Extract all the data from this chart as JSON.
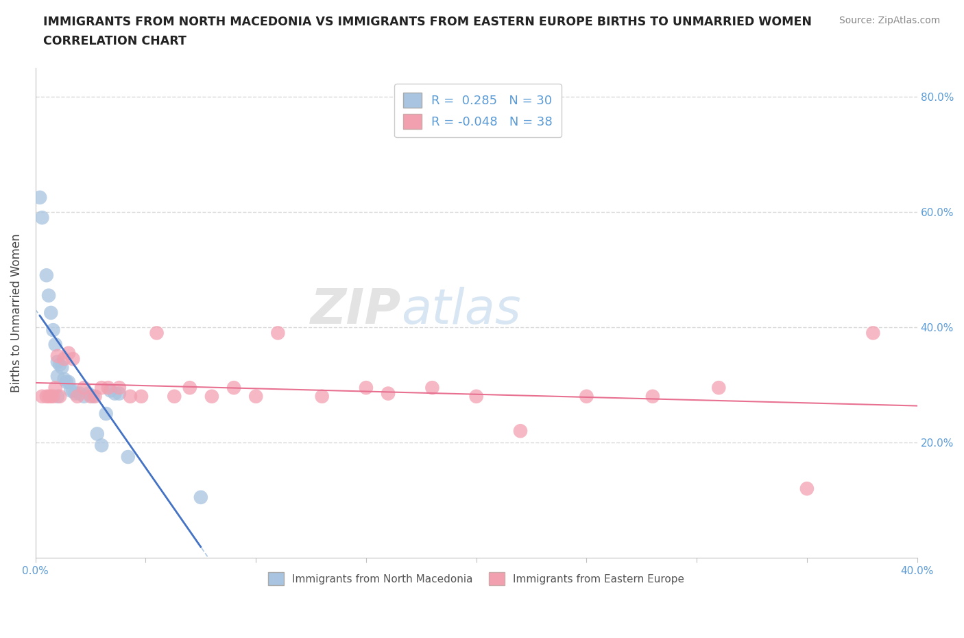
{
  "title_line1": "IMMIGRANTS FROM NORTH MACEDONIA VS IMMIGRANTS FROM EASTERN EUROPE BIRTHS TO UNMARRIED WOMEN",
  "title_line2": "CORRELATION CHART",
  "source_text": "Source: ZipAtlas.com",
  "ylabel": "Births to Unmarried Women",
  "xlim": [
    0.0,
    0.4
  ],
  "ylim": [
    0.0,
    0.85
  ],
  "x_ticks": [
    0.0,
    0.05,
    0.1,
    0.15,
    0.2,
    0.25,
    0.3,
    0.35,
    0.4
  ],
  "x_tick_labels": [
    "0.0%",
    "",
    "",
    "",
    "",
    "",
    "",
    "",
    "40.0%"
  ],
  "y_ticks": [
    0.0,
    0.2,
    0.4,
    0.6,
    0.8
  ],
  "y_tick_labels": [
    "",
    "20.0%",
    "40.0%",
    "60.0%",
    "80.0%"
  ],
  "blue_R": 0.285,
  "blue_N": 30,
  "pink_R": -0.048,
  "pink_N": 38,
  "blue_color": "#a8c4e0",
  "pink_color": "#f2a0b0",
  "blue_line_color": "#4472c4",
  "pink_line_color": "#e87090",
  "blue_scatter_x": [
    0.002,
    0.003,
    0.005,
    0.006,
    0.007,
    0.008,
    0.009,
    0.01,
    0.01,
    0.011,
    0.012,
    0.013,
    0.014,
    0.015,
    0.016,
    0.017,
    0.018,
    0.02,
    0.022,
    0.024,
    0.026,
    0.028,
    0.03,
    0.032,
    0.034,
    0.036,
    0.038,
    0.042,
    0.075,
    0.01
  ],
  "blue_scatter_y": [
    0.625,
    0.59,
    0.49,
    0.455,
    0.425,
    0.395,
    0.37,
    0.315,
    0.34,
    0.335,
    0.33,
    0.31,
    0.305,
    0.305,
    0.29,
    0.29,
    0.285,
    0.285,
    0.28,
    0.285,
    0.28,
    0.215,
    0.195,
    0.25,
    0.29,
    0.285,
    0.285,
    0.175,
    0.105,
    0.28
  ],
  "pink_scatter_x": [
    0.003,
    0.005,
    0.006,
    0.007,
    0.008,
    0.009,
    0.01,
    0.011,
    0.013,
    0.015,
    0.017,
    0.019,
    0.022,
    0.025,
    0.027,
    0.03,
    0.033,
    0.038,
    0.043,
    0.048,
    0.055,
    0.063,
    0.07,
    0.08,
    0.09,
    0.1,
    0.11,
    0.13,
    0.15,
    0.16,
    0.18,
    0.2,
    0.22,
    0.25,
    0.28,
    0.31,
    0.35,
    0.38
  ],
  "pink_scatter_y": [
    0.28,
    0.28,
    0.28,
    0.28,
    0.28,
    0.295,
    0.35,
    0.28,
    0.345,
    0.355,
    0.345,
    0.28,
    0.295,
    0.28,
    0.28,
    0.295,
    0.295,
    0.295,
    0.28,
    0.28,
    0.39,
    0.28,
    0.295,
    0.28,
    0.295,
    0.28,
    0.39,
    0.28,
    0.295,
    0.285,
    0.295,
    0.28,
    0.22,
    0.28,
    0.28,
    0.295,
    0.12,
    0.39
  ],
  "grid_color": "#d8d8d8",
  "axis_color": "#c0c0c0"
}
